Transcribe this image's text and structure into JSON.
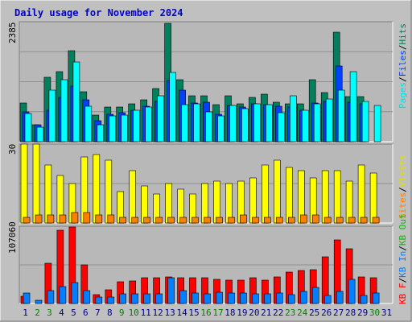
{
  "title": "Daily usage for November 2024",
  "colors": {
    "background": "#c0c0c0",
    "plot_bg": "#b8b8b8",
    "title": "#0000cc",
    "hits": "#00805c",
    "files": "#0040ff",
    "pages": "#00ffff",
    "visits": "#ffff00",
    "sites": "#ff8000",
    "kb_in": "#0080ff",
    "kb_out": "#00c000",
    "kb_f": "#ff0000",
    "weekend": "#008000",
    "weekday": "#000080"
  },
  "legend_top": [
    "Pages",
    "Files",
    "Hits"
  ],
  "legend_mid": [
    "Visits",
    "Sites"
  ],
  "legend_bot": [
    "KB F",
    "KB In",
    "KB Out"
  ],
  "chart_data": [
    {
      "type": "bar",
      "name": "hits-files-pages",
      "ymax_label": "2385",
      "ylim": [
        0,
        2385
      ],
      "categories": [
        "1",
        "2",
        "3",
        "4",
        "5",
        "6",
        "7",
        "8",
        "9",
        "10",
        "11",
        "12",
        "13",
        "14",
        "15",
        "16",
        "17",
        "18",
        "19",
        "20",
        "21",
        "22",
        "23",
        "24",
        "25",
        "26",
        "27",
        "28",
        "29",
        "30",
        "31"
      ],
      "series": [
        {
          "name": "Hits",
          "values": [
            770,
            340,
            1280,
            1390,
            1810,
            1000,
            530,
            690,
            690,
            750,
            840,
            1050,
            2350,
            1230,
            920,
            910,
            730,
            910,
            760,
            880,
            950,
            780,
            750,
            760,
            1230,
            980,
            2180,
            900,
            900,
            0,
            0
          ]
        },
        {
          "name": "Files",
          "values": [
            600,
            330,
            630,
            880,
            1110,
            830,
            420,
            550,
            570,
            620,
            700,
            800,
            1220,
            1030,
            770,
            780,
            550,
            720,
            690,
            760,
            730,
            700,
            690,
            630,
            770,
            800,
            1500,
            790,
            750,
            0,
            0
          ]
        },
        {
          "name": "Pages",
          "values": [
            560,
            290,
            1030,
            1230,
            1580,
            700,
            340,
            520,
            530,
            630,
            690,
            910,
            1380,
            730,
            760,
            600,
            520,
            720,
            650,
            750,
            740,
            570,
            920,
            630,
            760,
            850,
            1030,
            1400,
            800,
            720,
            0
          ]
        }
      ]
    },
    {
      "type": "bar",
      "name": "visits-sites",
      "ymax_label": "30",
      "ylim": [
        0,
        30
      ],
      "categories": [
        "1",
        "2",
        "3",
        "4",
        "5",
        "6",
        "7",
        "8",
        "9",
        "10",
        "11",
        "12",
        "13",
        "14",
        "15",
        "16",
        "17",
        "18",
        "19",
        "20",
        "21",
        "22",
        "23",
        "24",
        "25",
        "26",
        "27",
        "28",
        "29",
        "30",
        "31"
      ],
      "series": [
        {
          "name": "Visits",
          "values": [
            30,
            30,
            22,
            18,
            15,
            25,
            26,
            24,
            12,
            20,
            14,
            11,
            15,
            13,
            11,
            15,
            16,
            15,
            16,
            17,
            22,
            24,
            21,
            20,
            17,
            20,
            20,
            16,
            22,
            19,
            0
          ]
        },
        {
          "name": "Sites",
          "values": [
            2,
            3,
            3,
            3,
            4,
            4,
            3,
            3,
            2,
            2,
            2,
            2,
            2,
            2,
            2,
            2,
            2,
            2,
            3,
            2,
            2,
            2,
            2,
            3,
            3,
            2,
            2,
            2,
            2,
            2,
            0
          ]
        }
      ]
    },
    {
      "type": "bar",
      "name": "kbytes",
      "ymax_label": "107060",
      "ylim": [
        0,
        107060
      ],
      "categories": [
        "1",
        "2",
        "3",
        "4",
        "5",
        "6",
        "7",
        "8",
        "9",
        "10",
        "11",
        "12",
        "13",
        "14",
        "15",
        "16",
        "17",
        "18",
        "19",
        "20",
        "21",
        "22",
        "23",
        "24",
        "25",
        "26",
        "27",
        "28",
        "29",
        "30",
        "31"
      ],
      "series": [
        {
          "name": "KB F",
          "values": [
            9500,
            0,
            56000,
            102000,
            106000,
            54000,
            12000,
            19000,
            30000,
            31000,
            36000,
            36000,
            37000,
            36000,
            36000,
            36000,
            33000,
            32000,
            32000,
            36000,
            32000,
            37000,
            43000,
            46000,
            47000,
            65000,
            88000,
            76000,
            37000,
            36000,
            0
          ]
        },
        {
          "name": "KB In",
          "values": [
            14500,
            5000,
            18000,
            23000,
            29000,
            18000,
            9000,
            9000,
            13000,
            13000,
            13000,
            13000,
            36000,
            18000,
            15000,
            13000,
            16000,
            15000,
            14000,
            13000,
            13000,
            15000,
            12000,
            17000,
            22000,
            11000,
            17000,
            33000,
            11000,
            15000,
            0
          ]
        },
        {
          "name": "KB Out",
          "values": [
            0,
            0,
            0,
            0,
            0,
            0,
            0,
            0,
            0,
            0,
            0,
            0,
            0,
            0,
            0,
            0,
            0,
            0,
            0,
            0,
            0,
            0,
            0,
            0,
            0,
            0,
            0,
            0,
            0,
            0,
            0
          ]
        }
      ]
    }
  ],
  "weekend_days": [
    2,
    3,
    9,
    10,
    16,
    17,
    23,
    24,
    30
  ]
}
